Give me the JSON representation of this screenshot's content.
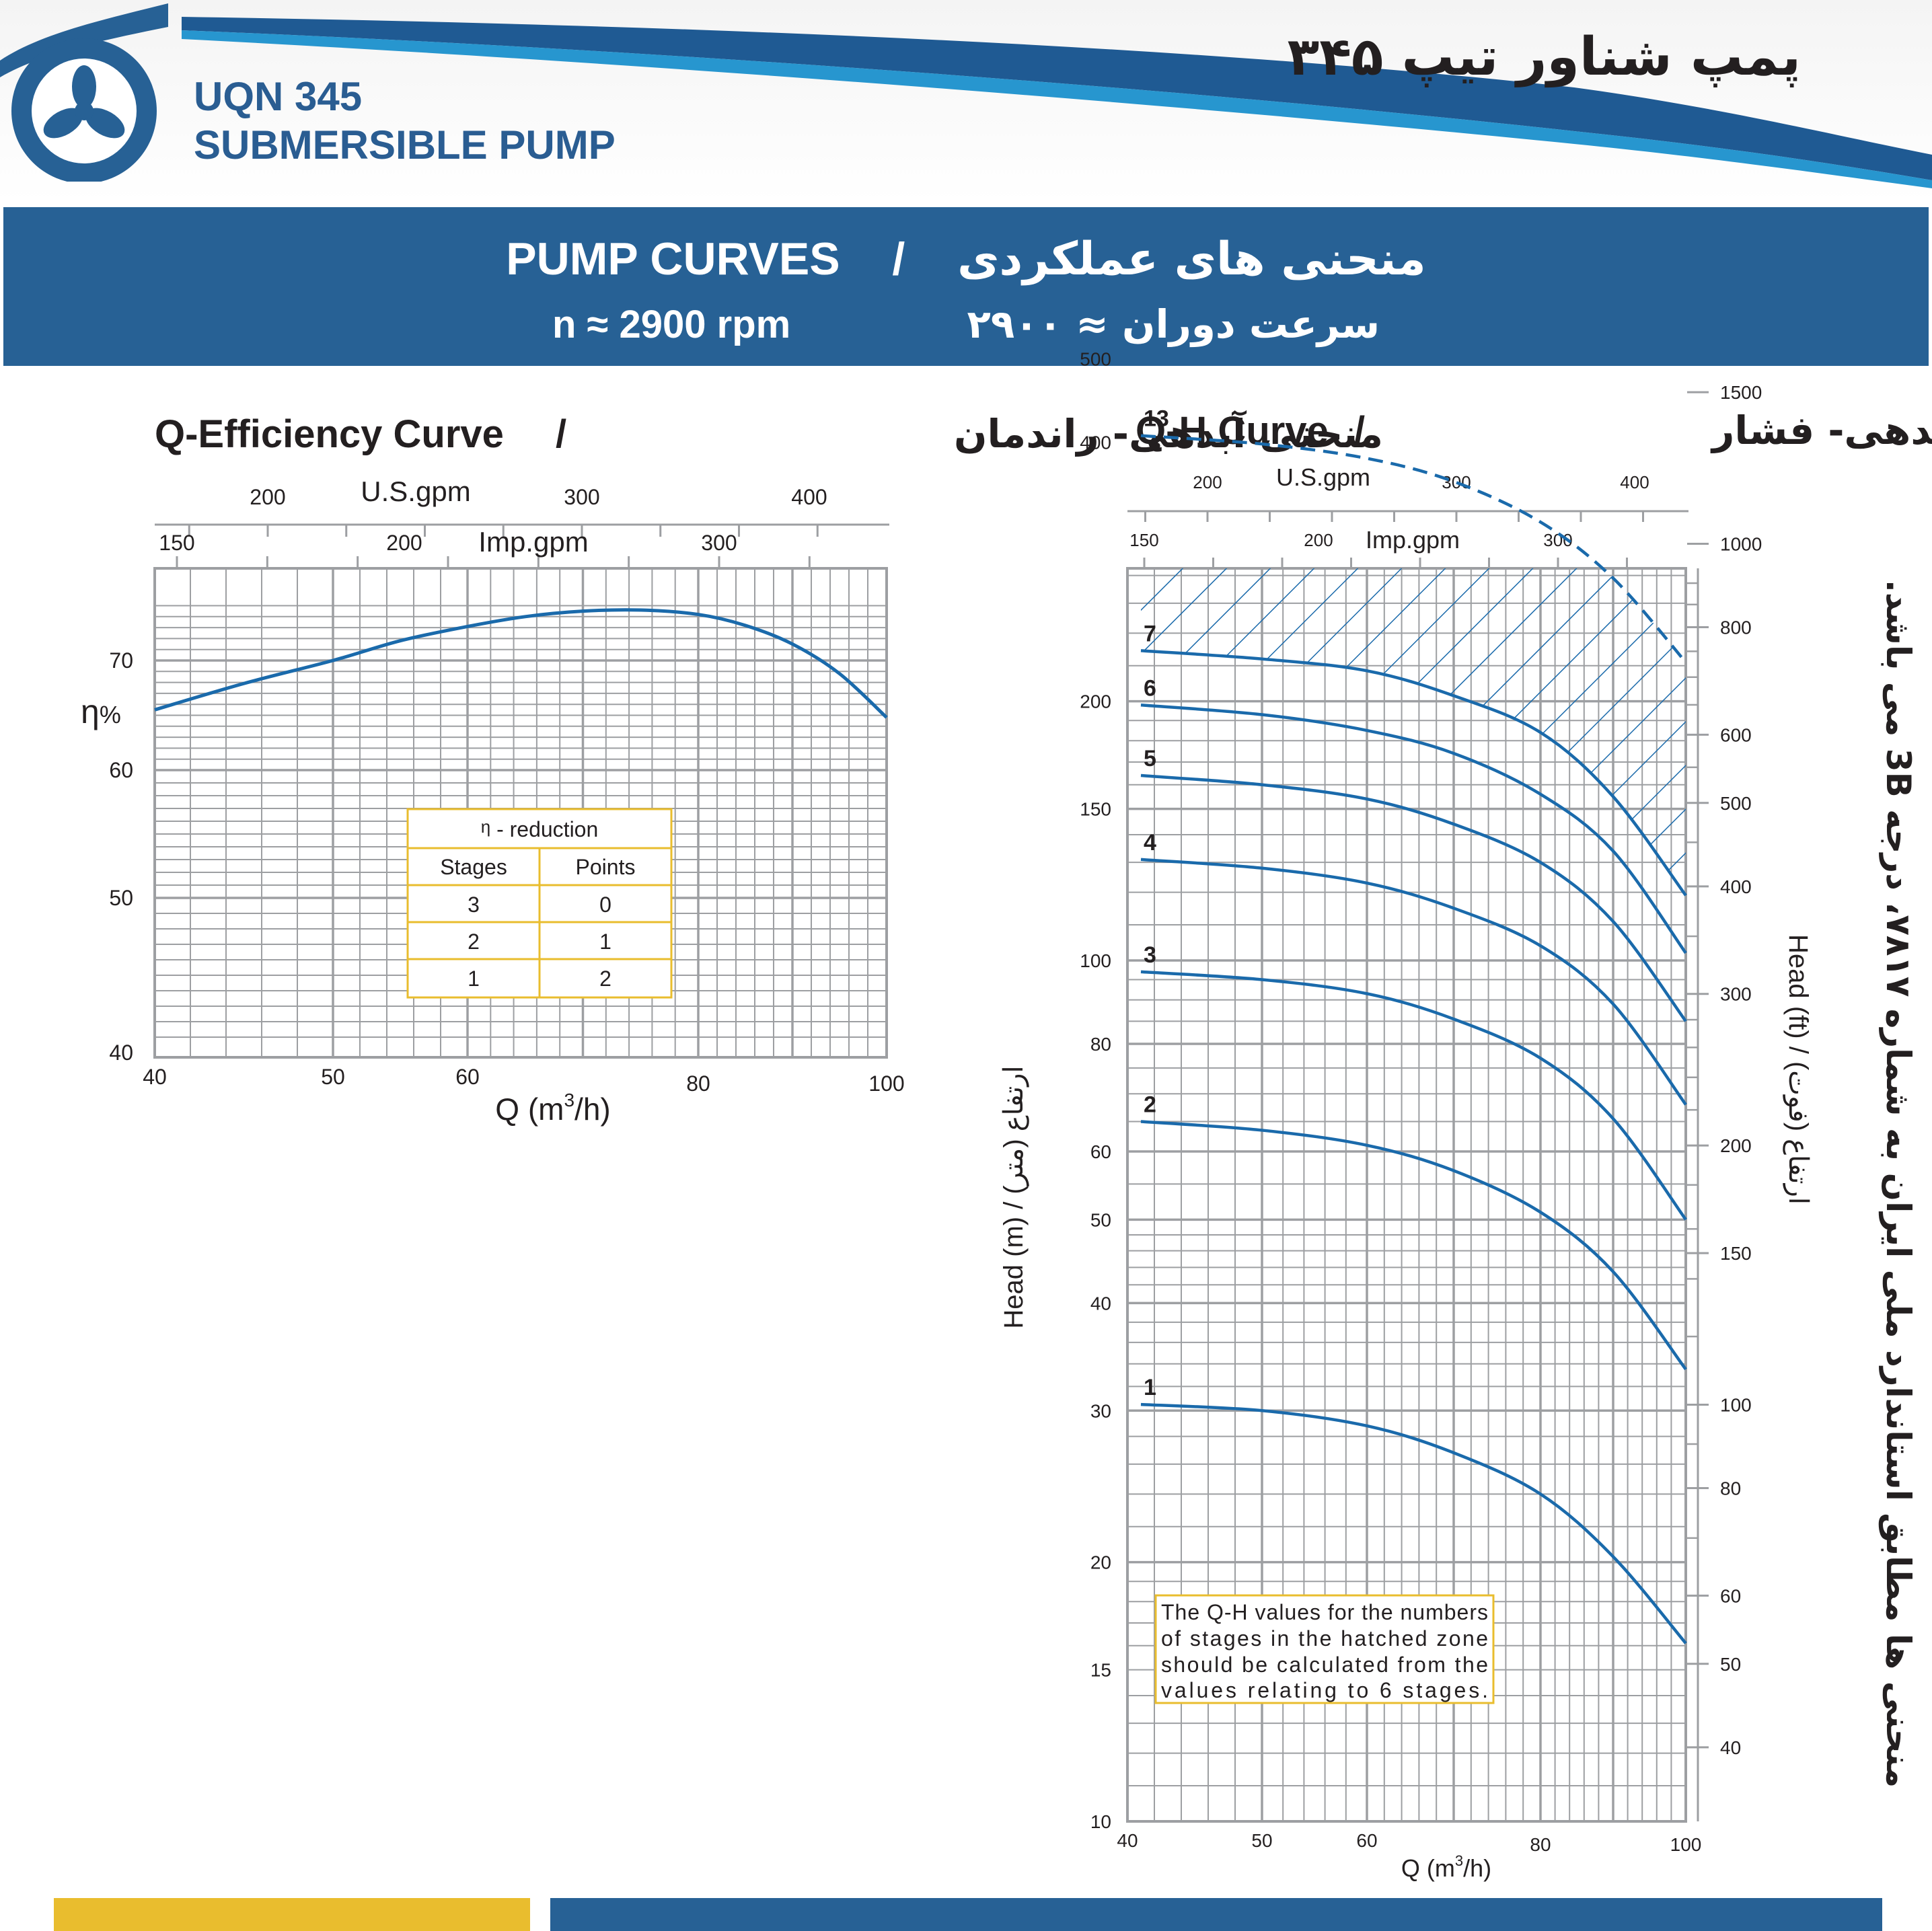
{
  "header": {
    "model_line1": "UQN 345",
    "model_line2": "SUBMERSIBLE PUMP",
    "title_fa": "پمپ شناور تیپ ۳۴۵",
    "logo_icon": "fan-logo-icon",
    "brand_color": "#276195"
  },
  "banner": {
    "title_en": "PUMP CURVES",
    "separator": "/",
    "title_fa": "منحنی های عملکردی",
    "speed_en": "n ≈ 2900 rpm",
    "speed_fa": "سرعت دوران ≈ ۲۹۰۰"
  },
  "eff_chart": {
    "title_en": "Q-Efficiency Curve",
    "title_sep": "/",
    "title_fa": "منحنی آبدهی- راندمان",
    "usgpm_label": "U.S.gpm",
    "impgpm_label": "Imp.gpm",
    "ylabel_main": "η",
    "ylabel_unit": "%",
    "xlabel": "Q (m",
    "xlabel_sup": "3",
    "xlabel_end": "/h)",
    "reduction_table": {
      "title_sym": "η",
      "title_rest": " - reduction",
      "headers": [
        "Stages",
        "Points"
      ],
      "rows": [
        [
          "3",
          "0"
        ],
        [
          "2",
          "1"
        ],
        [
          "1",
          "2"
        ]
      ]
    }
  },
  "qh_chart": {
    "title_en": "Q-H Curve",
    "title_sep": "/",
    "title_fa": "منحنی آبدهی- فشار",
    "usgpm_label": "U.S.gpm",
    "impgpm_label": "Imp.gpm",
    "ylabel_left": "Head (m)  /  ارتفاع (متر)",
    "ylabel_right": "Head (ft)  /  ارتفاع (فوت)",
    "xlabel": "Q (m",
    "xlabel_sup": "3",
    "xlabel_end": "/h)",
    "note_lines": [
      "The Q-H values for the numbers",
      "of stages in the hatched zone",
      "should be calculated from the",
      "values relating to 6 stages."
    ]
  },
  "side_note": "منحنی ها مطابق استاندارد ملی ایران به شماره ۷۸۱۷، درجه 3B می باشد.",
  "chart_data": [
    {
      "type": "line",
      "title": "Q-Efficiency Curve",
      "xlabel": "Q (m3/h)",
      "ylabel": "η%",
      "xlim": [
        40,
        100
      ],
      "ylim": [
        40,
        75
      ],
      "x_ticks": [
        40,
        50,
        60,
        80,
        100
      ],
      "y_ticks": [
        40,
        50,
        60,
        70
      ],
      "top_axis_impgpm": [
        150,
        200,
        300
      ],
      "top_axis_usgpm": [
        200,
        300,
        400
      ],
      "series": [
        {
          "x": [
            40,
            45,
            50,
            55,
            60,
            65,
            70,
            75,
            80,
            85,
            90,
            95,
            100
          ],
          "y": [
            65.5,
            67.9,
            70.0,
            71.8,
            73.1,
            74.0,
            74.5,
            74.6,
            74.2,
            73.2,
            71.5,
            68.8,
            64.8
          ]
        }
      ]
    },
    {
      "type": "line",
      "title": "Q-H Curve",
      "xlabel": "Q (m3/h)",
      "ylabel": "Head (m)",
      "ylabel_right": "Head (ft)",
      "yscale": "log",
      "ylim": [
        10,
        500
      ],
      "xlim": [
        40,
        100
      ],
      "x_ticks": [
        40,
        50,
        60,
        80,
        100
      ],
      "y_ticks": [
        10,
        15,
        20,
        30,
        40,
        50,
        60,
        80,
        100,
        150,
        200,
        400,
        500
      ],
      "right_ticks_ft": [
        40,
        50,
        60,
        80,
        100,
        150,
        200,
        300,
        400,
        500,
        600,
        800,
        1000,
        1500
      ],
      "top_axis_impgpm": [
        150,
        200,
        300
      ],
      "top_axis_usgpm": [
        200,
        300,
        400
      ],
      "x": [
        41,
        50,
        60,
        70,
        80,
        90,
        100
      ],
      "series": [
        {
          "name": "1",
          "values": [
            30.5,
            30.0,
            28.8,
            26.8,
            24.0,
            20.3,
            16.1
          ]
        },
        {
          "name": "2",
          "values": [
            65.0,
            63.5,
            61.0,
            57.0,
            51.0,
            43.5,
            33.5
          ]
        },
        {
          "name": "3",
          "values": [
            97.0,
            95.0,
            91.5,
            85.5,
            77.0,
            65.5,
            50.0
          ]
        },
        {
          "name": "4",
          "values": [
            131.0,
            128.0,
            123.0,
            115.0,
            104.0,
            89.0,
            68.0
          ]
        },
        {
          "name": "5",
          "values": [
            164.0,
            160.0,
            154.0,
            144.0,
            130.0,
            111.0,
            85.0
          ]
        },
        {
          "name": "6",
          "values": [
            198.0,
            193.0,
            185.0,
            174.0,
            156.0,
            134.0,
            102.0
          ]
        },
        {
          "name": "7",
          "values": [
            229.0,
            224.0,
            217.0,
            203.0,
            184.0,
            155.0,
            119.0
          ]
        },
        {
          "name": "13",
          "values": [
            407.0,
            398.0,
            383.0,
            360.0,
            323.0,
            278.0,
            222.0
          ],
          "style": "dashed"
        }
      ],
      "hatched_zone": "7-13 stages"
    }
  ]
}
